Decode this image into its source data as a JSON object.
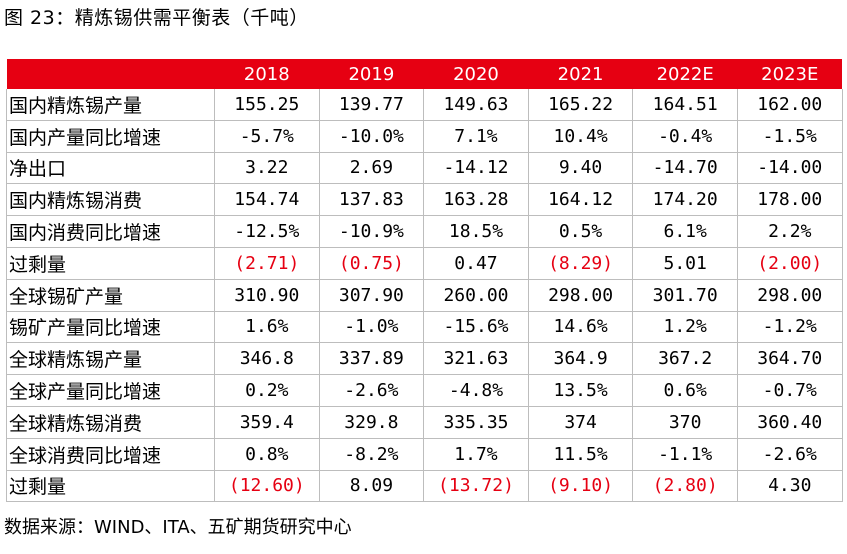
{
  "title": "图 23：精炼锡供需平衡表（千吨）",
  "header": [
    "",
    "2018",
    "2019",
    "2020",
    "2021",
    "2022E",
    "2023E"
  ],
  "rows": [
    {
      "label": "国内精炼锡产量",
      "cells": [
        {
          "text": "155.25"
        },
        {
          "text": "139.77"
        },
        {
          "text": "149.63"
        },
        {
          "text": "165.22"
        },
        {
          "text": "164.51"
        },
        {
          "text": "162.00"
        }
      ]
    },
    {
      "label": "国内产量同比增速",
      "cells": [
        {
          "text": "-5.7%"
        },
        {
          "text": "-10.0%"
        },
        {
          "text": "7.1%"
        },
        {
          "text": "10.4%"
        },
        {
          "text": "-0.4%"
        },
        {
          "text": "-1.5%"
        }
      ]
    },
    {
      "label": "净出口",
      "cells": [
        {
          "text": "3.22"
        },
        {
          "text": "2.69"
        },
        {
          "text": "-14.12"
        },
        {
          "text": "9.40"
        },
        {
          "text": "-14.70"
        },
        {
          "text": "-14.00"
        }
      ]
    },
    {
      "label": "国内精炼锡消费",
      "cells": [
        {
          "text": "154.74"
        },
        {
          "text": "137.83"
        },
        {
          "text": "163.28"
        },
        {
          "text": "164.12"
        },
        {
          "text": "174.20"
        },
        {
          "text": "178.00"
        }
      ]
    },
    {
      "label": "国内消费同比增速",
      "cells": [
        {
          "text": "-12.5%"
        },
        {
          "text": "-10.9%"
        },
        {
          "text": "18.5%"
        },
        {
          "text": "0.5%"
        },
        {
          "text": "6.1%"
        },
        {
          "text": "2.2%"
        }
      ]
    },
    {
      "label": "过剩量",
      "cells": [
        {
          "text": "(2.71)",
          "negative": true
        },
        {
          "text": "(0.75)",
          "negative": true
        },
        {
          "text": "0.47"
        },
        {
          "text": "(8.29)",
          "negative": true
        },
        {
          "text": "5.01"
        },
        {
          "text": "(2.00)",
          "negative": true
        }
      ]
    },
    {
      "label": "全球锡矿产量",
      "cells": [
        {
          "text": "310.90"
        },
        {
          "text": "307.90"
        },
        {
          "text": "260.00"
        },
        {
          "text": "298.00"
        },
        {
          "text": "301.70"
        },
        {
          "text": "298.00"
        }
      ]
    },
    {
      "label": "锡矿产量同比增速",
      "cells": [
        {
          "text": "1.6%"
        },
        {
          "text": "-1.0%"
        },
        {
          "text": "-15.6%"
        },
        {
          "text": "14.6%"
        },
        {
          "text": "1.2%"
        },
        {
          "text": "-1.2%"
        }
      ]
    },
    {
      "label": "全球精炼锡产量",
      "cells": [
        {
          "text": "346.8"
        },
        {
          "text": "337.89"
        },
        {
          "text": "321.63"
        },
        {
          "text": "364.9"
        },
        {
          "text": "367.2"
        },
        {
          "text": "364.70"
        }
      ]
    },
    {
      "label": "全球产量同比增速",
      "cells": [
        {
          "text": "0.2%"
        },
        {
          "text": "-2.6%"
        },
        {
          "text": "-4.8%"
        },
        {
          "text": "13.5%"
        },
        {
          "text": "0.6%"
        },
        {
          "text": "-0.7%"
        }
      ]
    },
    {
      "label": "全球精炼锡消费",
      "cells": [
        {
          "text": "359.4"
        },
        {
          "text": "329.8"
        },
        {
          "text": "335.35"
        },
        {
          "text": "374"
        },
        {
          "text": "370"
        },
        {
          "text": "360.40"
        }
      ]
    },
    {
      "label": "全球消费同比增速",
      "cells": [
        {
          "text": "0.8%"
        },
        {
          "text": "-8.2%"
        },
        {
          "text": "1.7%"
        },
        {
          "text": "11.5%"
        },
        {
          "text": "-1.1%"
        },
        {
          "text": "-2.6%"
        }
      ]
    },
    {
      "label": "过剩量",
      "cells": [
        {
          "text": "(12.60)",
          "negative": true
        },
        {
          "text": "8.09"
        },
        {
          "text": "(13.72)",
          "negative": true
        },
        {
          "text": "(9.10)",
          "negative": true
        },
        {
          "text": "(2.80)",
          "negative": true
        },
        {
          "text": "4.30"
        }
      ]
    }
  ],
  "source": "数据来源：WIND、ITA、五矿期货研究中心",
  "colors": {
    "header_bg": "#e60012",
    "negative_text": "#e60012",
    "grid": "#bdbdbd"
  }
}
